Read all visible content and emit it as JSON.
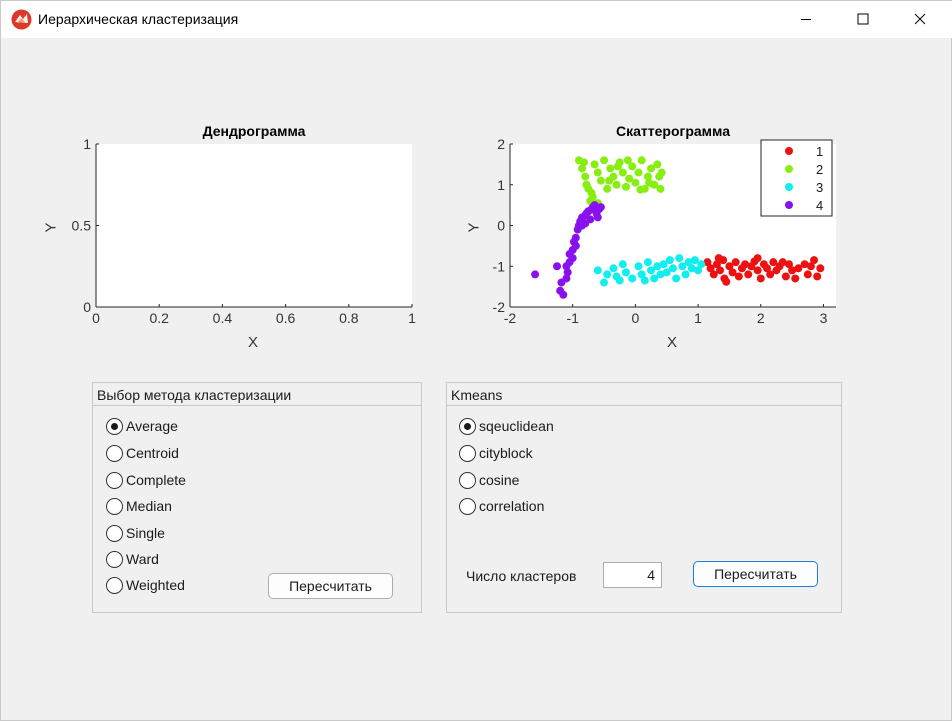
{
  "window": {
    "title": "Иерархическая кластеризация",
    "icon": "matlab-app-icon"
  },
  "dendrogram": {
    "title": "Дендрограмма",
    "xlabel": "X",
    "ylabel": "Y",
    "x_ticks": [
      "0",
      "0.2",
      "0.4",
      "0.6",
      "0.8",
      "1"
    ],
    "y_ticks": [
      "0",
      "0.5",
      "1"
    ]
  },
  "scatter": {
    "title": "Скаттерограмма",
    "xlabel": "X",
    "ylabel": "Y",
    "x_ticks": [
      "-2",
      "-1",
      "0",
      "1",
      "2",
      "3"
    ],
    "y_ticks": [
      "-2",
      "-1",
      "0",
      "1",
      "2"
    ],
    "legend": [
      "1",
      "2",
      "3",
      "4"
    ]
  },
  "chart_data": [
    {
      "type": "line",
      "title": "Дендрограмма",
      "xlabel": "X",
      "ylabel": "Y",
      "xlim": [
        0,
        1
      ],
      "ylim": [
        0,
        1
      ],
      "series": []
    },
    {
      "type": "scatter",
      "title": "Скаттерограмма",
      "xlabel": "X",
      "ylabel": "Y",
      "xlim": [
        -2,
        3.2
      ],
      "ylim": [
        -2,
        2
      ],
      "legend_position": "top-right",
      "series": [
        {
          "name": "1",
          "color": "#ee1111",
          "points": [
            [
              1.15,
              -0.9
            ],
            [
              1.2,
              -1.05
            ],
            [
              1.25,
              -1.2
            ],
            [
              1.3,
              -0.95
            ],
            [
              1.35,
              -1.1
            ],
            [
              1.4,
              -0.85
            ],
            [
              1.42,
              -1.3
            ],
            [
              1.5,
              -1.0
            ],
            [
              1.55,
              -1.15
            ],
            [
              1.6,
              -0.9
            ],
            [
              1.65,
              -1.25
            ],
            [
              1.7,
              -1.05
            ],
            [
              1.75,
              -0.95
            ],
            [
              1.8,
              -1.2
            ],
            [
              1.85,
              -1.0
            ],
            [
              1.9,
              -0.88
            ],
            [
              1.95,
              -1.1
            ],
            [
              2.0,
              -1.3
            ],
            [
              2.05,
              -0.95
            ],
            [
              2.1,
              -1.05
            ],
            [
              2.15,
              -1.2
            ],
            [
              2.2,
              -0.9
            ],
            [
              2.25,
              -1.1
            ],
            [
              2.3,
              -1.0
            ],
            [
              2.4,
              -1.25
            ],
            [
              2.45,
              -0.95
            ],
            [
              2.5,
              -1.1
            ],
            [
              2.6,
              -1.05
            ],
            [
              2.7,
              -0.95
            ],
            [
              2.75,
              -1.2
            ],
            [
              2.8,
              -1.0
            ],
            [
              2.85,
              -0.85
            ],
            [
              2.9,
              -1.25
            ],
            [
              2.95,
              -1.05
            ],
            [
              1.45,
              -1.38
            ],
            [
              1.33,
              -0.8
            ],
            [
              2.55,
              -1.3
            ],
            [
              1.95,
              -0.8
            ],
            [
              2.35,
              -0.9
            ]
          ]
        },
        {
          "name": "2",
          "color": "#88ee11",
          "points": [
            [
              -0.9,
              1.6
            ],
            [
              -0.85,
              1.4
            ],
            [
              -0.8,
              1.2
            ],
            [
              -0.78,
              1.0
            ],
            [
              -0.75,
              0.9
            ],
            [
              -0.7,
              0.8
            ],
            [
              -0.65,
              1.5
            ],
            [
              -0.6,
              1.3
            ],
            [
              -0.55,
              1.1
            ],
            [
              -0.5,
              1.6
            ],
            [
              -0.45,
              0.9
            ],
            [
              -0.4,
              1.4
            ],
            [
              -0.35,
              1.2
            ],
            [
              -0.3,
              1.0
            ],
            [
              -0.25,
              1.55
            ],
            [
              -0.2,
              1.3
            ],
            [
              -0.15,
              0.95
            ],
            [
              -0.1,
              1.15
            ],
            [
              -0.05,
              1.45
            ],
            [
              0.0,
              1.05
            ],
            [
              0.05,
              1.3
            ],
            [
              0.1,
              1.6
            ],
            [
              0.15,
              0.9
            ],
            [
              0.2,
              1.2
            ],
            [
              0.25,
              1.4
            ],
            [
              0.3,
              1.0
            ],
            [
              0.35,
              1.5
            ],
            [
              0.38,
              1.2
            ],
            [
              0.4,
              0.9
            ],
            [
              0.42,
              1.3
            ],
            [
              -0.72,
              0.6
            ],
            [
              -0.68,
              0.7
            ],
            [
              -0.6,
              0.55
            ],
            [
              -0.82,
              1.55
            ],
            [
              -0.12,
              1.6
            ],
            [
              0.22,
              1.05
            ],
            [
              -0.42,
              1.1
            ],
            [
              0.08,
              0.88
            ],
            [
              -0.28,
              1.45
            ]
          ]
        },
        {
          "name": "3",
          "color": "#11eeee",
          "points": [
            [
              -0.5,
              -1.4
            ],
            [
              -0.45,
              -1.2
            ],
            [
              -0.35,
              -1.05
            ],
            [
              -0.3,
              -1.25
            ],
            [
              -0.2,
              -0.95
            ],
            [
              -0.15,
              -1.15
            ],
            [
              -0.05,
              -1.3
            ],
            [
              0.05,
              -1.0
            ],
            [
              0.1,
              -1.2
            ],
            [
              0.2,
              -0.9
            ],
            [
              0.25,
              -1.1
            ],
            [
              0.3,
              -1.3
            ],
            [
              0.35,
              -1.0
            ],
            [
              0.45,
              -0.95
            ],
            [
              0.5,
              -1.15
            ],
            [
              0.55,
              -0.85
            ],
            [
              0.6,
              -1.05
            ],
            [
              0.7,
              -0.8
            ],
            [
              0.75,
              -1.0
            ],
            [
              0.8,
              -1.2
            ],
            [
              0.85,
              -0.9
            ],
            [
              0.9,
              -1.05
            ],
            [
              0.95,
              -0.85
            ],
            [
              1.0,
              -1.1
            ],
            [
              1.05,
              -0.95
            ],
            [
              -0.25,
              -1.35
            ],
            [
              0.15,
              -1.35
            ],
            [
              0.65,
              -1.3
            ],
            [
              -0.6,
              -1.1
            ],
            [
              0.4,
              -1.2
            ]
          ]
        },
        {
          "name": "4",
          "color": "#8811ee",
          "points": [
            [
              -1.6,
              -1.2
            ],
            [
              -1.2,
              -1.6
            ],
            [
              -1.15,
              -1.7
            ],
            [
              -1.18,
              -1.4
            ],
            [
              -1.1,
              -1.3
            ],
            [
              -1.1,
              -1.0
            ],
            [
              -1.05,
              -0.9
            ],
            [
              -1.05,
              -0.7
            ],
            [
              -1.0,
              -0.6
            ],
            [
              -0.98,
              -0.4
            ],
            [
              -0.95,
              -0.3
            ],
            [
              -0.92,
              -0.1
            ],
            [
              -0.9,
              0.0
            ],
            [
              -0.88,
              0.1
            ],
            [
              -0.85,
              0.2
            ],
            [
              -0.8,
              0.25
            ],
            [
              -0.78,
              0.3
            ],
            [
              -0.75,
              0.35
            ],
            [
              -0.7,
              0.4
            ],
            [
              -0.68,
              0.45
            ],
            [
              -0.65,
              0.5
            ],
            [
              -0.62,
              0.3
            ],
            [
              -0.6,
              0.2
            ],
            [
              -0.58,
              0.4
            ],
            [
              -0.55,
              0.45
            ],
            [
              -0.85,
              0.0
            ],
            [
              -0.95,
              -0.5
            ],
            [
              -1.0,
              -0.8
            ],
            [
              -1.08,
              -1.15
            ],
            [
              -1.25,
              -1.0
            ],
            [
              -0.72,
              0.15
            ],
            [
              -0.8,
              0.05
            ]
          ]
        }
      ]
    }
  ],
  "method_panel": {
    "title": "Выбор метода кластеризации",
    "options": [
      "Average",
      "Centroid",
      "Complete",
      "Median",
      "Single",
      "Ward",
      "Weighted"
    ],
    "selected": "Average",
    "recalc_label": "Пересчитать"
  },
  "kmeans_panel": {
    "title": "Kmeans",
    "options": [
      "sqeuclidean",
      "cityblock",
      "cosine",
      "correlation"
    ],
    "selected": "sqeuclidean",
    "clusters_label": "Число кластеров",
    "clusters_value": "4",
    "recalc_label": "Пересчитать"
  }
}
